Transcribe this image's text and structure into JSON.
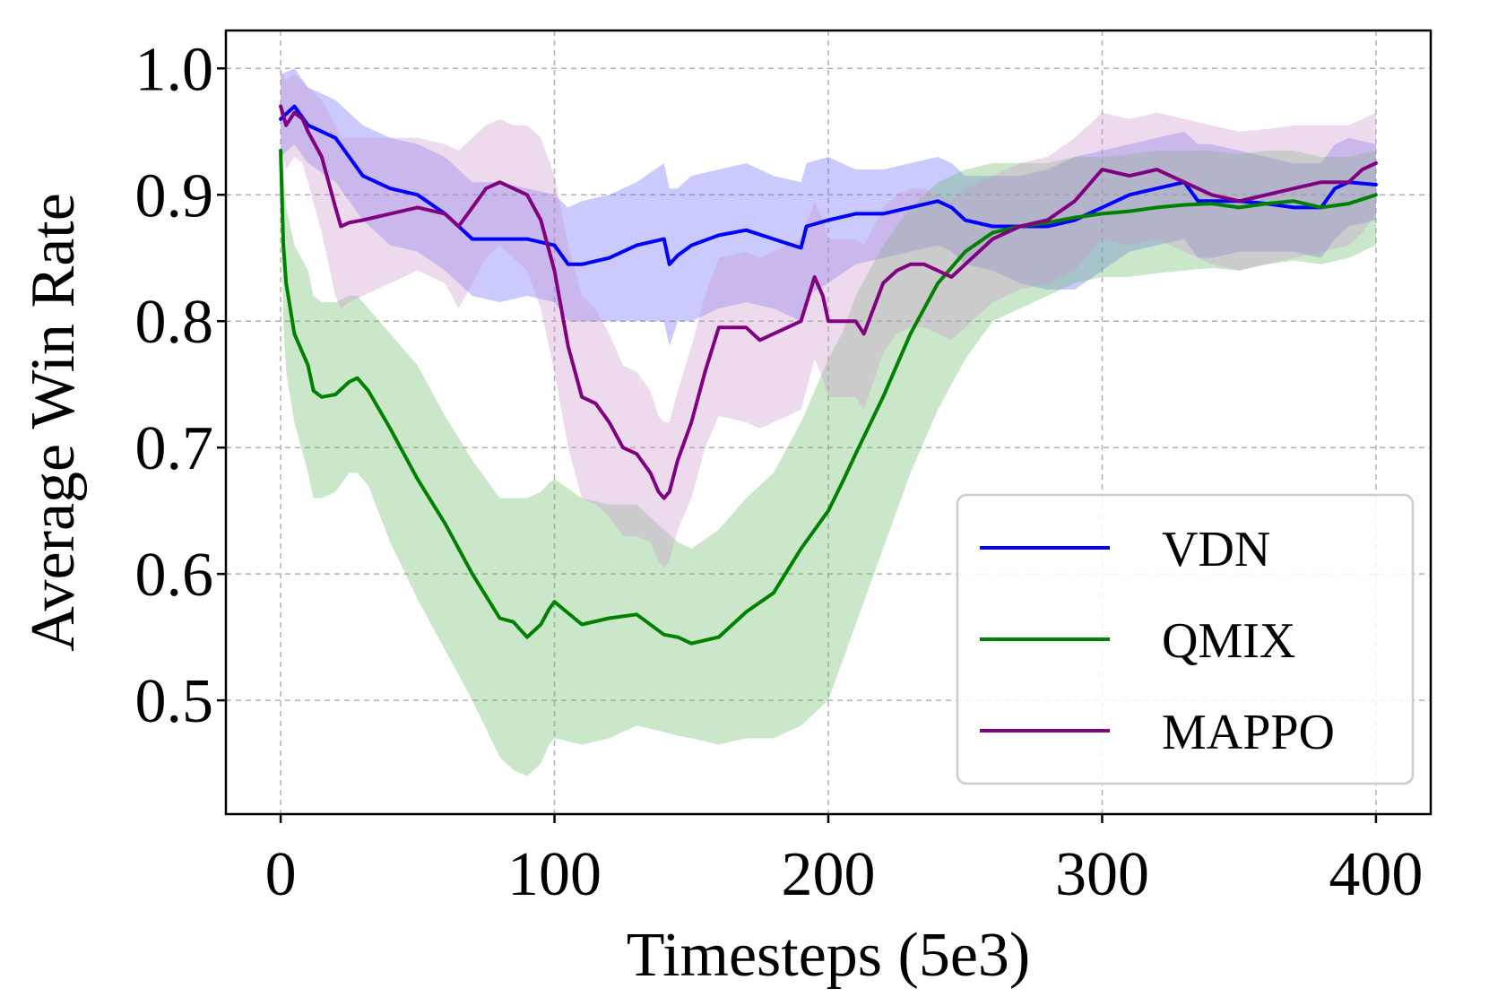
{
  "chart_data": {
    "type": "line",
    "title": "",
    "xlabel": "Timesteps (5e3)",
    "ylabel": "Average Win Rate",
    "xlim": [
      -20,
      420
    ],
    "ylim": [
      0.41,
      1.03
    ],
    "xticks": [
      0,
      100,
      200,
      300,
      400
    ],
    "xtick_labels": [
      "0",
      "100",
      "200",
      "300",
      "400"
    ],
    "yticks": [
      0.5,
      0.6,
      0.7,
      0.8,
      0.9,
      1.0
    ],
    "ytick_labels": [
      "0.5",
      "0.6",
      "0.7",
      "0.8",
      "0.9",
      "1.0"
    ],
    "grid": true,
    "legend_position": "lower-right",
    "series": [
      {
        "name": "VDN",
        "color": "#0000ff",
        "band_color": "#6666ff",
        "x": [
          0,
          5,
          10,
          20,
          30,
          40,
          50,
          60,
          70,
          80,
          90,
          100,
          105,
          110,
          120,
          130,
          140,
          142,
          145,
          150,
          160,
          170,
          180,
          190,
          192,
          200,
          210,
          220,
          230,
          240,
          245,
          250,
          260,
          270,
          280,
          290,
          300,
          310,
          320,
          330,
          335,
          340,
          350,
          360,
          370,
          380,
          385,
          390,
          400
        ],
        "values": [
          0.96,
          0.97,
          0.955,
          0.945,
          0.915,
          0.905,
          0.9,
          0.885,
          0.865,
          0.865,
          0.865,
          0.86,
          0.845,
          0.845,
          0.85,
          0.86,
          0.865,
          0.845,
          0.852,
          0.86,
          0.868,
          0.872,
          0.865,
          0.858,
          0.875,
          0.88,
          0.885,
          0.885,
          0.89,
          0.895,
          0.89,
          0.88,
          0.875,
          0.875,
          0.875,
          0.88,
          0.89,
          0.9,
          0.905,
          0.91,
          0.895,
          0.895,
          0.895,
          0.893,
          0.89,
          0.89,
          0.905,
          0.91,
          0.908
        ],
        "lower": [
          0.93,
          0.94,
          0.925,
          0.91,
          0.88,
          0.86,
          0.855,
          0.84,
          0.82,
          0.815,
          0.82,
          0.815,
          0.8,
          0.8,
          0.8,
          0.8,
          0.8,
          0.78,
          0.8,
          0.8,
          0.81,
          0.815,
          0.81,
          0.8,
          0.82,
          0.83,
          0.845,
          0.85,
          0.855,
          0.86,
          0.855,
          0.845,
          0.84,
          0.83,
          0.825,
          0.825,
          0.84,
          0.855,
          0.86,
          0.865,
          0.85,
          0.85,
          0.855,
          0.855,
          0.855,
          0.85,
          0.865,
          0.875,
          0.88
        ],
        "upper": [
          0.995,
          1.0,
          0.985,
          0.975,
          0.955,
          0.945,
          0.94,
          0.93,
          0.91,
          0.91,
          0.905,
          0.9,
          0.89,
          0.895,
          0.9,
          0.91,
          0.925,
          0.905,
          0.905,
          0.915,
          0.92,
          0.925,
          0.915,
          0.91,
          0.925,
          0.93,
          0.92,
          0.92,
          0.925,
          0.93,
          0.925,
          0.915,
          0.915,
          0.915,
          0.92,
          0.93,
          0.935,
          0.94,
          0.945,
          0.95,
          0.94,
          0.94,
          0.935,
          0.93,
          0.925,
          0.925,
          0.94,
          0.945,
          0.94
        ]
      },
      {
        "name": "QMIX",
        "color": "#008000",
        "band_color": "#66bb66",
        "x": [
          0,
          1,
          2,
          5,
          10,
          12,
          15,
          20,
          25,
          28,
          32,
          40,
          50,
          60,
          70,
          80,
          85,
          90,
          95,
          98,
          100,
          110,
          120,
          130,
          140,
          145,
          150,
          160,
          170,
          180,
          190,
          200,
          205,
          210,
          220,
          230,
          240,
          250,
          260,
          270,
          280,
          290,
          300,
          310,
          320,
          330,
          340,
          350,
          360,
          370,
          380,
          390,
          400
        ],
        "values": [
          0.935,
          0.86,
          0.83,
          0.79,
          0.765,
          0.745,
          0.74,
          0.742,
          0.752,
          0.755,
          0.745,
          0.715,
          0.675,
          0.64,
          0.6,
          0.565,
          0.562,
          0.55,
          0.56,
          0.572,
          0.578,
          0.56,
          0.565,
          0.568,
          0.552,
          0.55,
          0.545,
          0.55,
          0.57,
          0.585,
          0.62,
          0.65,
          0.672,
          0.695,
          0.74,
          0.79,
          0.83,
          0.855,
          0.87,
          0.875,
          0.878,
          0.882,
          0.885,
          0.887,
          0.89,
          0.892,
          0.893,
          0.89,
          0.893,
          0.895,
          0.89,
          0.893,
          0.9
        ],
        "lower": [
          0.9,
          0.8,
          0.76,
          0.72,
          0.68,
          0.66,
          0.66,
          0.665,
          0.68,
          0.68,
          0.67,
          0.625,
          0.58,
          0.54,
          0.5,
          0.455,
          0.445,
          0.44,
          0.45,
          0.465,
          0.47,
          0.465,
          0.47,
          0.48,
          0.475,
          0.472,
          0.47,
          0.465,
          0.47,
          0.47,
          0.48,
          0.5,
          0.53,
          0.56,
          0.62,
          0.68,
          0.73,
          0.77,
          0.8,
          0.81,
          0.82,
          0.83,
          0.835,
          0.835,
          0.838,
          0.84,
          0.842,
          0.84,
          0.845,
          0.848,
          0.845,
          0.85,
          0.86
        ],
        "upper": [
          0.94,
          0.915,
          0.89,
          0.86,
          0.84,
          0.82,
          0.815,
          0.815,
          0.82,
          0.82,
          0.81,
          0.79,
          0.765,
          0.725,
          0.69,
          0.66,
          0.66,
          0.66,
          0.665,
          0.672,
          0.675,
          0.66,
          0.655,
          0.655,
          0.635,
          0.625,
          0.62,
          0.635,
          0.66,
          0.68,
          0.72,
          0.77,
          0.79,
          0.82,
          0.86,
          0.89,
          0.91,
          0.92,
          0.925,
          0.925,
          0.925,
          0.93,
          0.93,
          0.932,
          0.935,
          0.935,
          0.935,
          0.932,
          0.935,
          0.935,
          0.93,
          0.93,
          0.935
        ]
      },
      {
        "name": "MAPPO",
        "color": "#800080",
        "band_color": "#cc99cc",
        "x": [
          0,
          2,
          5,
          8,
          10,
          15,
          20,
          22,
          25,
          30,
          40,
          50,
          60,
          65,
          70,
          75,
          80,
          85,
          90,
          95,
          100,
          105,
          110,
          115,
          120,
          125,
          130,
          135,
          138,
          140,
          142,
          145,
          150,
          155,
          160,
          170,
          175,
          180,
          185,
          190,
          195,
          198,
          200,
          210,
          213,
          220,
          225,
          230,
          235,
          240,
          245,
          250,
          260,
          270,
          280,
          290,
          300,
          310,
          320,
          330,
          340,
          350,
          360,
          370,
          380,
          390,
          395,
          400
        ],
        "values": [
          0.97,
          0.955,
          0.965,
          0.96,
          0.95,
          0.93,
          0.89,
          0.875,
          0.878,
          0.88,
          0.885,
          0.89,
          0.885,
          0.875,
          0.89,
          0.905,
          0.91,
          0.905,
          0.9,
          0.88,
          0.84,
          0.78,
          0.74,
          0.735,
          0.72,
          0.7,
          0.695,
          0.68,
          0.665,
          0.66,
          0.665,
          0.69,
          0.72,
          0.76,
          0.795,
          0.795,
          0.785,
          0.79,
          0.795,
          0.8,
          0.835,
          0.82,
          0.8,
          0.8,
          0.79,
          0.83,
          0.84,
          0.845,
          0.845,
          0.84,
          0.835,
          0.845,
          0.865,
          0.875,
          0.88,
          0.895,
          0.92,
          0.915,
          0.92,
          0.91,
          0.9,
          0.895,
          0.9,
          0.905,
          0.91,
          0.91,
          0.92,
          0.925
        ],
        "lower": [
          0.94,
          0.92,
          0.93,
          0.925,
          0.91,
          0.87,
          0.82,
          0.81,
          0.815,
          0.82,
          0.83,
          0.84,
          0.83,
          0.81,
          0.83,
          0.85,
          0.86,
          0.85,
          0.84,
          0.81,
          0.76,
          0.7,
          0.66,
          0.655,
          0.645,
          0.63,
          0.63,
          0.625,
          0.61,
          0.605,
          0.61,
          0.635,
          0.66,
          0.7,
          0.725,
          0.72,
          0.715,
          0.72,
          0.725,
          0.73,
          0.77,
          0.755,
          0.74,
          0.74,
          0.73,
          0.775,
          0.79,
          0.795,
          0.795,
          0.79,
          0.785,
          0.795,
          0.815,
          0.825,
          0.83,
          0.84,
          0.865,
          0.86,
          0.865,
          0.855,
          0.845,
          0.84,
          0.845,
          0.85,
          0.855,
          0.86,
          0.87,
          0.885
        ],
        "upper": [
          1.0,
          0.99,
          0.995,
          0.99,
          0.985,
          0.975,
          0.955,
          0.945,
          0.945,
          0.945,
          0.945,
          0.945,
          0.94,
          0.935,
          0.945,
          0.955,
          0.96,
          0.955,
          0.955,
          0.945,
          0.915,
          0.86,
          0.82,
          0.81,
          0.79,
          0.765,
          0.76,
          0.745,
          0.725,
          0.72,
          0.72,
          0.745,
          0.78,
          0.82,
          0.85,
          0.855,
          0.85,
          0.855,
          0.86,
          0.865,
          0.895,
          0.88,
          0.865,
          0.865,
          0.86,
          0.89,
          0.9,
          0.905,
          0.905,
          0.9,
          0.895,
          0.905,
          0.915,
          0.925,
          0.93,
          0.945,
          0.965,
          0.96,
          0.965,
          0.96,
          0.955,
          0.95,
          0.952,
          0.955,
          0.955,
          0.955,
          0.96,
          0.965
        ]
      }
    ]
  }
}
